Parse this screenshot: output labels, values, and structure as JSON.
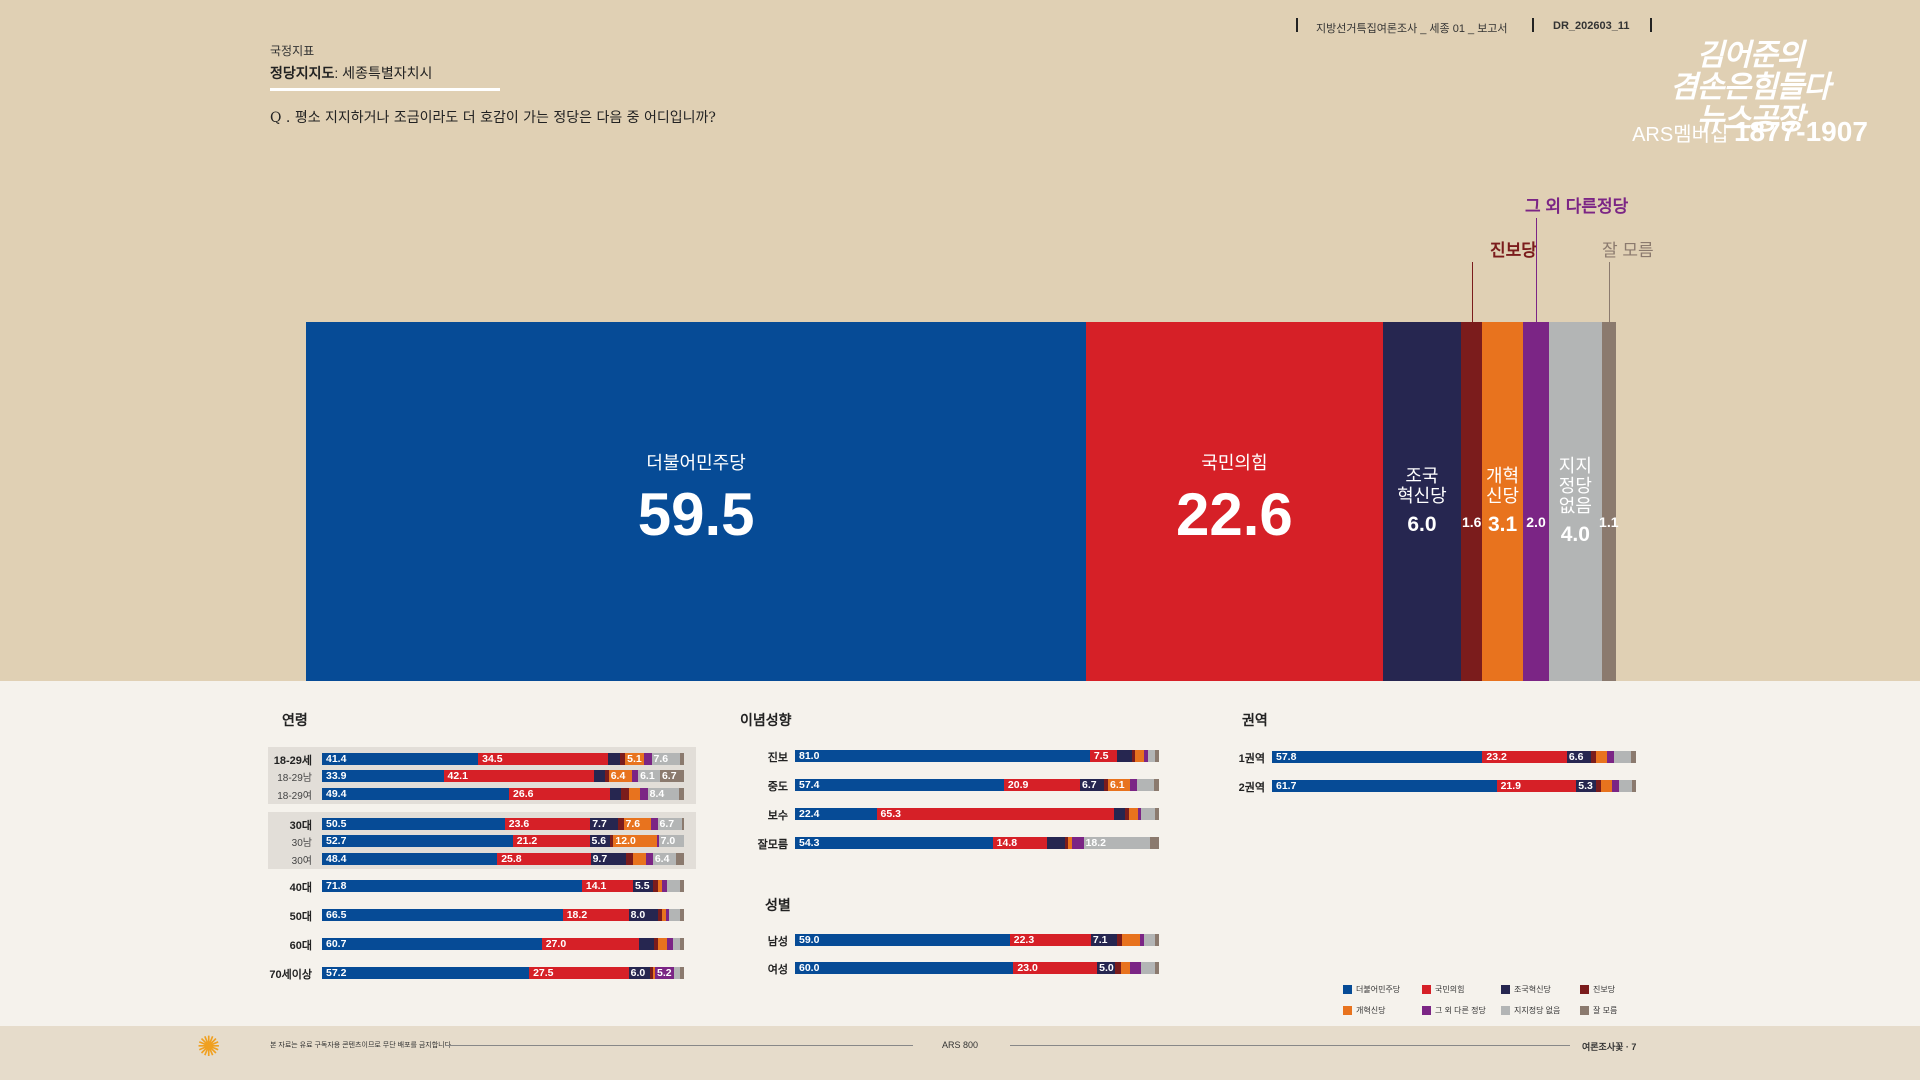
{
  "header": {
    "survey": "지방선거특집여론조사 _ 세종 01 _ 보고서",
    "code": "DR_202603_11"
  },
  "logo": {
    "line1": "김어준의",
    "line2": "겸손은힘들다",
    "line3": "뉴스공장",
    "ars_label": "ARS멤버십",
    "ars_number": "1877-1907"
  },
  "page": {
    "kicker": "국정지표",
    "title_bold": "정당지지도",
    "title_rest": ": 세종특별자치시",
    "question": "Q . 평소 지지하거나 조금이라도 더 호감이 가는 정당은 다음 중 어디입니까?"
  },
  "colors": {
    "dem": "#064b96",
    "ppp": "#d62027",
    "cho": "#262650",
    "prog": "#7b1c1c",
    "reform": "#e8731e",
    "other": "#7b2585",
    "none": "#b3b5b5",
    "dk": "#8b7a6e"
  },
  "chart_data": [
    {
      "type": "bar",
      "stacked": true,
      "orientation": "horizontal",
      "title": "정당지지도",
      "categories": [
        "더불어민주당",
        "국민의힘",
        "조국혁신당",
        "진보당",
        "개혁신당",
        "그 외 다른정당",
        "지지정당 없음",
        "잘 모름"
      ],
      "values": [
        59.5,
        22.6,
        6.0,
        1.6,
        3.1,
        2.0,
        4.0,
        1.1
      ],
      "inner_labels": [
        [
          "더불어민주당"
        ],
        [
          "국민의힘"
        ],
        [
          "조국",
          "혁신당"
        ],
        [],
        [
          "개혁",
          "신당"
        ],
        [],
        [
          "지지",
          "정당",
          "없음"
        ],
        []
      ],
      "callouts": {
        "진보당": "진보당",
        "그 외 다른정당": "그 외 다른정당",
        "잘 모름": "잘 모름"
      }
    },
    {
      "type": "bar",
      "stacked": true,
      "section": "연령",
      "series_order": [
        "더불어민주당",
        "국민의힘",
        "조국혁신당",
        "진보당",
        "개혁신당",
        "그 외 다른정당",
        "지지정당 없음",
        "잘 모름"
      ],
      "rows": [
        {
          "label": "18-29세",
          "sub": false,
          "values": [
            41.4,
            34.5,
            3.0,
            1.5,
            5.1,
            1.9,
            7.6,
            1.0
          ],
          "show": [
            0,
            1,
            4,
            6
          ]
        },
        {
          "label": "18-29남",
          "sub": true,
          "values": [
            33.9,
            42.1,
            3.0,
            1.0,
            6.4,
            1.8,
            6.1,
            6.7
          ],
          "show": [
            0,
            1,
            4,
            6,
            7
          ]
        },
        {
          "label": "18-29여",
          "sub": true,
          "values": [
            49.4,
            26.6,
            3.0,
            2.0,
            3.0,
            2.0,
            8.4,
            1.2
          ],
          "show": [
            0,
            1,
            6
          ]
        },
        {
          "label": "30대",
          "sub": false,
          "values": [
            50.5,
            23.6,
            7.7,
            1.5,
            7.6,
            1.8,
            6.7,
            0.6
          ],
          "show": [
            0,
            1,
            2,
            4,
            6
          ]
        },
        {
          "label": "30남",
          "sub": true,
          "values": [
            52.7,
            21.2,
            5.6,
            1.0,
            12.0,
            0.5,
            7.0,
            0.0
          ],
          "show": [
            0,
            1,
            2,
            4,
            6
          ]
        },
        {
          "label": "30여",
          "sub": true,
          "values": [
            48.4,
            25.8,
            9.7,
            2.0,
            3.5,
            2.0,
            6.4,
            2.2
          ],
          "show": [
            0,
            1,
            2,
            6
          ]
        },
        {
          "label": "40대",
          "sub": false,
          "values": [
            71.8,
            14.1,
            5.5,
            1.5,
            1.0,
            1.5,
            3.5,
            1.1
          ],
          "show": [
            0,
            1,
            2
          ]
        },
        {
          "label": "50대",
          "sub": false,
          "values": [
            66.5,
            18.2,
            8.0,
            1.3,
            1.0,
            1.0,
            3.0,
            1.0
          ],
          "show": [
            0,
            1,
            2
          ]
        },
        {
          "label": "60대",
          "sub": false,
          "values": [
            60.7,
            27.0,
            4.0,
            1.0,
            2.5,
            1.8,
            2.0,
            1.0
          ],
          "show": [
            0,
            1
          ]
        },
        {
          "label": "70세이상",
          "sub": false,
          "values": [
            57.2,
            27.5,
            6.0,
            0.8,
            0.5,
            5.2,
            1.8,
            1.0
          ],
          "show": [
            0,
            1,
            2,
            5
          ]
        }
      ]
    },
    {
      "type": "bar",
      "stacked": true,
      "section": "이념성향",
      "rows": [
        {
          "label": "진보",
          "values": [
            81.0,
            7.5,
            4.0,
            1.0,
            2.5,
            1.0,
            2.0,
            1.0
          ],
          "show": [
            0,
            1
          ]
        },
        {
          "label": "중도",
          "values": [
            57.4,
            20.9,
            6.7,
            1.0,
            6.1,
            2.0,
            4.5,
            1.4
          ],
          "show": [
            0,
            1,
            2,
            4
          ]
        },
        {
          "label": "보수",
          "values": [
            22.4,
            65.3,
            3.0,
            1.0,
            2.5,
            1.0,
            3.8,
            1.0
          ],
          "show": [
            0,
            1
          ]
        },
        {
          "label": "잘모름",
          "values": [
            54.3,
            14.8,
            5.0,
            1.0,
            1.0,
            3.2,
            18.2,
            2.5
          ],
          "show": [
            0,
            1,
            6
          ]
        }
      ]
    },
    {
      "type": "bar",
      "stacked": true,
      "section": "성별",
      "rows": [
        {
          "label": "남성",
          "values": [
            59.0,
            22.3,
            7.1,
            1.5,
            5.0,
            1.0,
            3.1,
            1.0
          ],
          "show": [
            0,
            1,
            2
          ]
        },
        {
          "label": "여성",
          "values": [
            60.0,
            23.0,
            5.0,
            1.5,
            2.5,
            3.0,
            4.0,
            1.0
          ],
          "show": [
            0,
            1,
            2
          ]
        }
      ]
    },
    {
      "type": "bar",
      "stacked": true,
      "section": "권역",
      "rows": [
        {
          "label": "1권역",
          "values": [
            57.8,
            23.2,
            6.6,
            1.5,
            3.0,
            2.0,
            4.5,
            1.4
          ],
          "show": [
            0,
            1,
            2
          ]
        },
        {
          "label": "2권역",
          "values": [
            61.7,
            21.9,
            5.3,
            1.5,
            3.0,
            2.0,
            3.5,
            1.1
          ],
          "show": [
            0,
            1,
            2
          ]
        }
      ]
    }
  ],
  "legend": [
    "더불어민주당",
    "국민의힘",
    "조국혁신당",
    "진보당",
    "개혁신당",
    "그 외 다른 정당",
    "지지정당 없음",
    "잘 모름"
  ],
  "footer": {
    "notice": "본 자료는 유료 구독자용 콘텐츠이므로 무단 배포를 금지합니다",
    "center": "ARS 800",
    "right": "여론조사꽃 · 7"
  }
}
